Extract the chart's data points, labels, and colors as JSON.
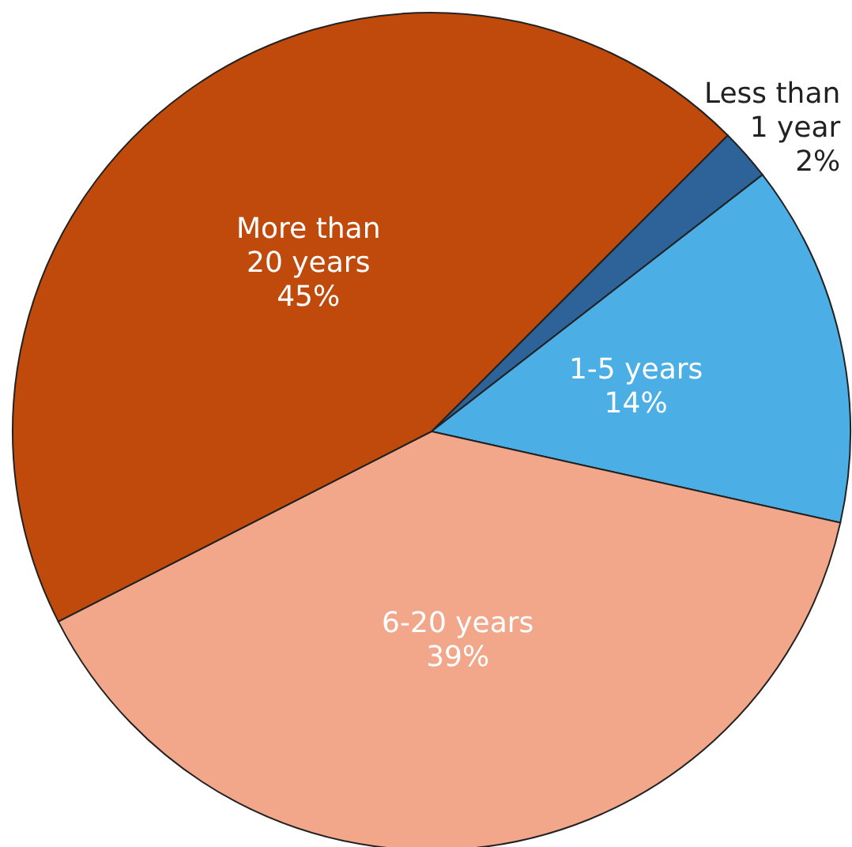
{
  "chart_data": {
    "type": "pie",
    "categories": [
      "Less than 1 year",
      "1-5 years",
      "6-20 years",
      "More than 20 years"
    ],
    "values": [
      2,
      14,
      39,
      45
    ],
    "colors": [
      "#2e6399",
      "#4baee5",
      "#f2a68a",
      "#bf4a0c"
    ],
    "value_labels": [
      "2%",
      "14%",
      "39%",
      "45%"
    ]
  }
}
